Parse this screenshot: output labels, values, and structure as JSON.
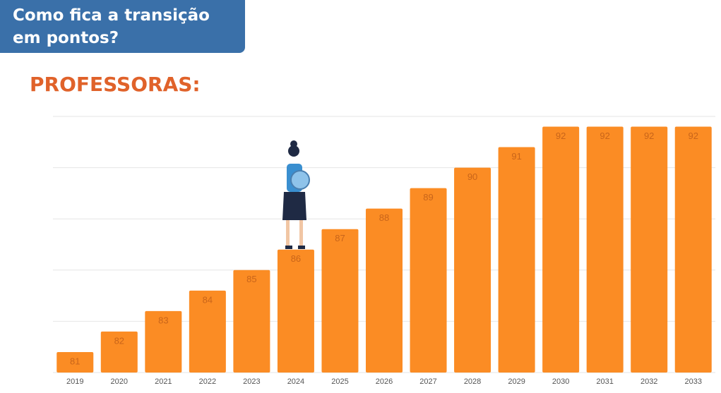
{
  "header": {
    "title": "Como fica a transição em pontos?"
  },
  "chart_data": {
    "type": "bar",
    "title": "PROFESSORAS:",
    "categories": [
      "2019",
      "2020",
      "2021",
      "2022",
      "2023",
      "2024",
      "2025",
      "2026",
      "2027",
      "2028",
      "2029",
      "2030",
      "2031",
      "2032",
      "2033"
    ],
    "values": [
      81,
      82,
      83,
      84,
      85,
      86,
      87,
      88,
      89,
      90,
      91,
      92,
      92,
      92,
      92
    ],
    "color": "#fb8c24",
    "label_color": "#c9651a",
    "ylim": [
      80,
      92.5
    ],
    "gridlines": [
      80,
      82.5,
      85,
      87.5,
      90,
      92.5
    ],
    "grid": true
  }
}
